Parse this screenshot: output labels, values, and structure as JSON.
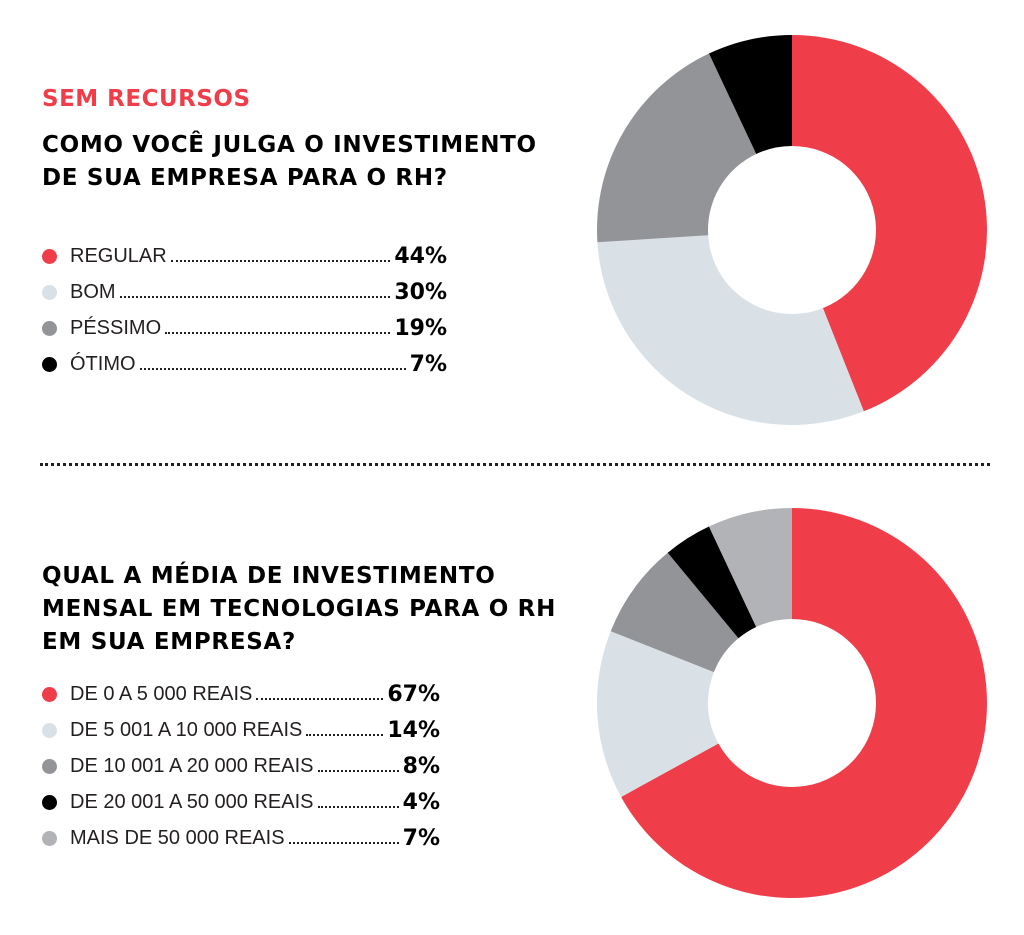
{
  "kicker": "SEM RECURSOS",
  "colors": {
    "red": "#ef3e4a",
    "light_gray": "#d9e1e7",
    "dark_gray": "#929497",
    "black": "#000000",
    "mid_gray": "#b1b3b6"
  },
  "chart_data": [
    {
      "type": "pie",
      "donut": true,
      "title": "COMO VOCÊ JULGA O INVESTIMENTO DE SUA EMPRESA PARA O RH?",
      "categories": [
        "REGULAR",
        "BOM",
        "PÉSSIMO",
        "ÓTIMO"
      ],
      "values": [
        44,
        30,
        19,
        7
      ],
      "value_labels": [
        "44%",
        "30%",
        "19%",
        "7%"
      ],
      "colors": [
        "#ef3e4a",
        "#d9e1e7",
        "#929497",
        "#000000"
      ]
    },
    {
      "type": "pie",
      "donut": true,
      "title": "QUAL A MÉDIA DE INVESTIMENTO MENSAL EM TECNOLOGIAS PARA O RH EM SUA EMPRESA?",
      "categories": [
        "DE 0 A 5 000 REAIS",
        "DE 5 001 A 10 000 REAIS",
        "DE 10 001 A 20 000 REAIS",
        "DE 20 001 A 50 000 REAIS",
        "MAIS DE 50 000 REAIS"
      ],
      "values": [
        67,
        14,
        8,
        4,
        7
      ],
      "value_labels": [
        "67%",
        "14%",
        "8%",
        "4%",
        "7%"
      ],
      "colors": [
        "#ef3e4a",
        "#d9e1e7",
        "#929497",
        "#000000",
        "#b1b3b6"
      ]
    }
  ]
}
